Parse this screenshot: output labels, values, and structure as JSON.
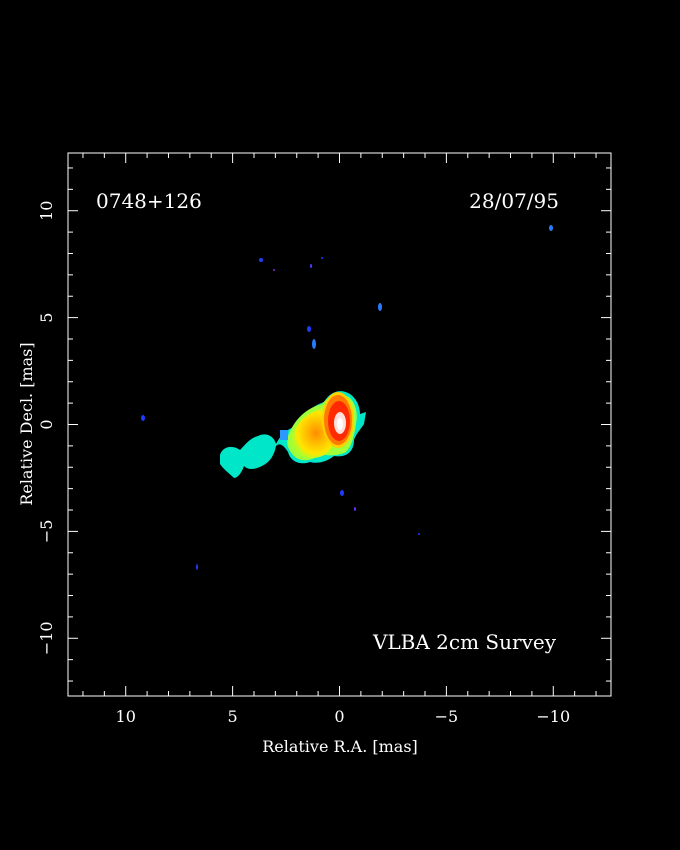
{
  "image": {
    "source_label": "0748+126",
    "date": "28/07/95",
    "survey_label": "VLBA 2cm Survey",
    "xlabel": "Relative R.A. [mas]",
    "ylabel": "Relative Decl. [mas]",
    "x_ticks": [
      {
        "value": 10,
        "label": "10"
      },
      {
        "value": 5,
        "label": "5"
      },
      {
        "value": 0,
        "label": "0"
      },
      {
        "value": -5,
        "label": "−5"
      },
      {
        "value": -10,
        "label": "−10"
      }
    ],
    "y_ticks": [
      {
        "value": 10,
        "label": "10"
      },
      {
        "value": 5,
        "label": "5"
      },
      {
        "value": 0,
        "label": "0"
      },
      {
        "value": -5,
        "label": "−5"
      },
      {
        "value": -10,
        "label": "−10"
      }
    ],
    "x_range": [
      12.7,
      -12.7
    ],
    "y_range": [
      -12.7,
      12.7
    ],
    "colors": {
      "background": "#000000",
      "axes": "#ffffff",
      "low_emission": "#1e3cff",
      "mid_emission": "#00e6c8",
      "jet_green": "#9fff3a",
      "jet_yellow": "#ffe600",
      "jet_orange": "#ff8c00",
      "core_red": "#ff2a00",
      "core_peak": "#ffffff"
    }
  }
}
